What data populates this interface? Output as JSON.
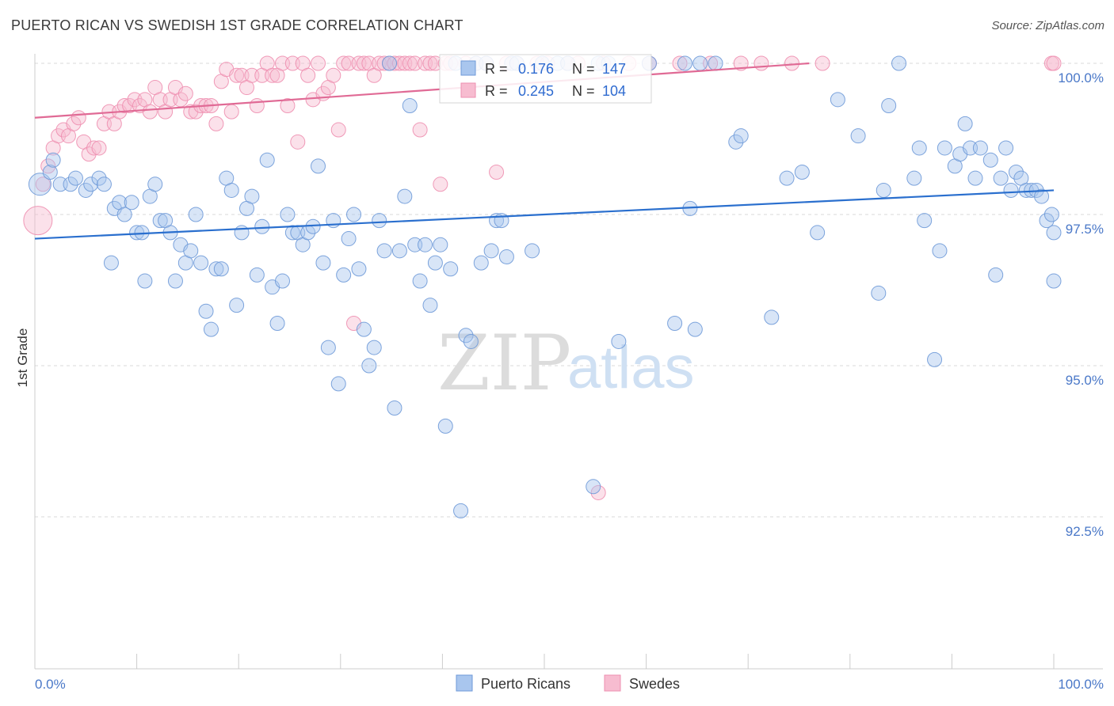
{
  "title": "PUERTO RICAN VS SWEDISH 1ST GRADE CORRELATION CHART",
  "source": "Source: ZipAtlas.com",
  "watermark": {
    "zip": "ZIP",
    "atlas": "atlas"
  },
  "colors": {
    "blue_fill": "#a9c6ee",
    "blue_stroke": "#6f9ad8",
    "blue_line": "#2a6fce",
    "pink_fill": "#f7bcd0",
    "pink_stroke": "#ee8fb0",
    "pink_line": "#e06a95",
    "axis_label": "#4a78c8",
    "grid": "#d8d8d8"
  },
  "chart_data": {
    "type": "scatter",
    "ylabel": "1st Grade",
    "xlim": [
      0,
      100
    ],
    "ylim": [
      90.0,
      100.4
    ],
    "x_tick_labels": [
      "0.0%",
      "100.0%"
    ],
    "y_ticks": [
      92.5,
      95.0,
      97.5,
      100.0
    ],
    "y_tick_labels": [
      "92.5%",
      "95.0%",
      "97.5%",
      "100.0%"
    ],
    "grid": "horizontal dashed",
    "legend": {
      "placement": "top-center",
      "entries": [
        {
          "r_label": "R =",
          "r_value": "0.176",
          "n_label": "N =",
          "n_value": "147"
        },
        {
          "r_label": "R =",
          "r_value": "0.245",
          "n_label": "N =",
          "n_value": "104"
        }
      ]
    },
    "series": [
      {
        "name": "Puerto Ricans",
        "color": "blue",
        "trend": {
          "x": [
            0,
            100
          ],
          "y": [
            97.1,
            97.9
          ]
        },
        "points": [
          [
            0.5,
            98.0
          ],
          [
            1.5,
            98.2
          ],
          [
            1.8,
            98.4
          ],
          [
            2.5,
            98.0
          ],
          [
            3.5,
            98.0
          ],
          [
            4,
            98.1
          ],
          [
            5,
            97.9
          ],
          [
            5.5,
            98.0
          ],
          [
            6.3,
            98.1
          ],
          [
            6.8,
            98.0
          ],
          [
            7.5,
            96.7
          ],
          [
            7.8,
            97.6
          ],
          [
            8.3,
            97.7
          ],
          [
            8.8,
            97.5
          ],
          [
            9.5,
            97.7
          ],
          [
            10,
            97.2
          ],
          [
            10.5,
            97.2
          ],
          [
            10.8,
            96.4
          ],
          [
            11.3,
            97.8
          ],
          [
            11.8,
            98.0
          ],
          [
            12.3,
            97.4
          ],
          [
            12.8,
            97.4
          ],
          [
            13.3,
            97.2
          ],
          [
            13.8,
            96.4
          ],
          [
            14.3,
            97.0
          ],
          [
            14.8,
            96.7
          ],
          [
            15.3,
            96.9
          ],
          [
            15.8,
            97.5
          ],
          [
            16.3,
            96.7
          ],
          [
            16.8,
            95.9
          ],
          [
            17.3,
            95.6
          ],
          [
            17.8,
            96.6
          ],
          [
            18.3,
            96.6
          ],
          [
            18.8,
            98.1
          ],
          [
            19.3,
            97.9
          ],
          [
            19.8,
            96.0
          ],
          [
            20.3,
            97.2
          ],
          [
            20.8,
            97.6
          ],
          [
            21.3,
            97.8
          ],
          [
            21.8,
            96.5
          ],
          [
            22.3,
            97.3
          ],
          [
            22.8,
            98.4
          ],
          [
            23.3,
            96.3
          ],
          [
            23.8,
            95.7
          ],
          [
            24.3,
            96.4
          ],
          [
            24.8,
            97.5
          ],
          [
            25.3,
            97.2
          ],
          [
            25.8,
            97.2
          ],
          [
            26.3,
            97.0
          ],
          [
            26.8,
            97.2
          ],
          [
            27.3,
            97.3
          ],
          [
            27.8,
            98.3
          ],
          [
            28.3,
            96.7
          ],
          [
            28.8,
            95.3
          ],
          [
            29.3,
            97.4
          ],
          [
            29.8,
            94.7
          ],
          [
            30.3,
            96.5
          ],
          [
            30.8,
            97.1
          ],
          [
            31.3,
            97.5
          ],
          [
            31.8,
            96.6
          ],
          [
            32.3,
            95.6
          ],
          [
            32.8,
            95.0
          ],
          [
            33.3,
            95.3
          ],
          [
            33.8,
            97.4
          ],
          [
            34.3,
            96.9
          ],
          [
            34.8,
            100.0
          ],
          [
            35.3,
            94.3
          ],
          [
            35.8,
            96.9
          ],
          [
            36.3,
            97.8
          ],
          [
            36.8,
            99.3
          ],
          [
            37.3,
            97.0
          ],
          [
            37.8,
            96.4
          ],
          [
            38.3,
            97.0
          ],
          [
            38.8,
            96.0
          ],
          [
            39.3,
            96.7
          ],
          [
            39.8,
            97.0
          ],
          [
            40.3,
            94.0
          ],
          [
            40.8,
            96.6
          ],
          [
            41.3,
            100.0
          ],
          [
            41.8,
            92.6
          ],
          [
            42.3,
            95.5
          ],
          [
            42.8,
            95.4
          ],
          [
            43.3,
            100.0
          ],
          [
            43.8,
            96.7
          ],
          [
            44.3,
            100.0
          ],
          [
            44.8,
            96.9
          ],
          [
            45.3,
            97.4
          ],
          [
            45.8,
            97.4
          ],
          [
            46.3,
            96.8
          ],
          [
            46.8,
            100.0
          ],
          [
            47.3,
            100.0
          ],
          [
            48.8,
            96.9
          ],
          [
            49.8,
            100.0
          ],
          [
            51.3,
            100.0
          ],
          [
            52.3,
            100.0
          ],
          [
            54.8,
            93.0
          ],
          [
            55.3,
            100.0
          ],
          [
            56.3,
            100.0
          ],
          [
            57.3,
            95.4
          ],
          [
            60.3,
            100.0
          ],
          [
            62.8,
            95.7
          ],
          [
            63.8,
            100.0
          ],
          [
            64.3,
            97.6
          ],
          [
            64.8,
            95.6
          ],
          [
            65.3,
            100.0
          ],
          [
            66.8,
            100.0
          ],
          [
            68.8,
            98.7
          ],
          [
            69.3,
            98.8
          ],
          [
            72.3,
            95.8
          ],
          [
            73.8,
            98.1
          ],
          [
            75.3,
            98.2
          ],
          [
            76.8,
            97.2
          ],
          [
            78.8,
            99.4
          ],
          [
            80.8,
            98.8
          ],
          [
            82.8,
            96.2
          ],
          [
            83.3,
            97.9
          ],
          [
            83.8,
            99.3
          ],
          [
            84.8,
            100.0
          ],
          [
            86.3,
            98.1
          ],
          [
            86.8,
            98.6
          ],
          [
            87.3,
            97.4
          ],
          [
            88.3,
            95.1
          ],
          [
            88.8,
            96.9
          ],
          [
            89.3,
            98.6
          ],
          [
            90.3,
            98.3
          ],
          [
            90.8,
            98.5
          ],
          [
            91.3,
            99.0
          ],
          [
            91.8,
            98.6
          ],
          [
            92.3,
            98.1
          ],
          [
            92.8,
            98.6
          ],
          [
            93.8,
            98.4
          ],
          [
            94.3,
            96.5
          ],
          [
            94.8,
            98.1
          ],
          [
            95.3,
            98.6
          ],
          [
            95.8,
            97.9
          ],
          [
            96.3,
            98.2
          ],
          [
            96.8,
            98.1
          ],
          [
            97.3,
            97.9
          ],
          [
            97.8,
            97.9
          ],
          [
            98.3,
            97.9
          ],
          [
            98.8,
            97.8
          ],
          [
            99.3,
            97.4
          ],
          [
            99.8,
            97.5
          ],
          [
            100,
            97.2
          ],
          [
            100,
            96.4
          ]
        ]
      },
      {
        "name": "Swedes",
        "color": "pink",
        "trend": {
          "x": [
            0,
            76
          ],
          "y": [
            99.1,
            100.0
          ]
        },
        "points": [
          [
            0.3,
            97.4
          ],
          [
            0.8,
            98.0
          ],
          [
            1.3,
            98.3
          ],
          [
            1.8,
            98.6
          ],
          [
            2.3,
            98.8
          ],
          [
            2.8,
            98.9
          ],
          [
            3.3,
            98.8
          ],
          [
            3.8,
            99.0
          ],
          [
            4.3,
            99.1
          ],
          [
            4.8,
            98.7
          ],
          [
            5.3,
            98.5
          ],
          [
            5.8,
            98.6
          ],
          [
            6.3,
            98.6
          ],
          [
            6.8,
            99.0
          ],
          [
            7.3,
            99.2
          ],
          [
            7.8,
            99.0
          ],
          [
            8.3,
            99.2
          ],
          [
            8.8,
            99.3
          ],
          [
            9.3,
            99.3
          ],
          [
            9.8,
            99.4
          ],
          [
            10.3,
            99.3
          ],
          [
            10.8,
            99.4
          ],
          [
            11.3,
            99.2
          ],
          [
            11.8,
            99.6
          ],
          [
            12.3,
            99.4
          ],
          [
            12.8,
            99.2
          ],
          [
            13.3,
            99.4
          ],
          [
            13.8,
            99.6
          ],
          [
            14.3,
            99.4
          ],
          [
            14.8,
            99.5
          ],
          [
            15.3,
            99.2
          ],
          [
            15.8,
            99.2
          ],
          [
            16.3,
            99.3
          ],
          [
            16.8,
            99.3
          ],
          [
            17.3,
            99.3
          ],
          [
            17.8,
            99.0
          ],
          [
            18.3,
            99.7
          ],
          [
            18.8,
            99.9
          ],
          [
            19.3,
            99.2
          ],
          [
            19.8,
            99.8
          ],
          [
            20.3,
            99.8
          ],
          [
            20.8,
            99.6
          ],
          [
            21.3,
            99.8
          ],
          [
            21.8,
            99.3
          ],
          [
            22.3,
            99.8
          ],
          [
            22.8,
            100.0
          ],
          [
            23.3,
            99.8
          ],
          [
            23.8,
            99.8
          ],
          [
            24.3,
            100.0
          ],
          [
            24.8,
            99.3
          ],
          [
            25.3,
            100.0
          ],
          [
            25.8,
            98.7
          ],
          [
            26.3,
            100.0
          ],
          [
            26.8,
            99.8
          ],
          [
            27.3,
            99.4
          ],
          [
            27.8,
            100.0
          ],
          [
            28.3,
            99.5
          ],
          [
            28.8,
            99.6
          ],
          [
            29.3,
            99.8
          ],
          [
            29.8,
            98.9
          ],
          [
            30.3,
            100.0
          ],
          [
            30.8,
            100.0
          ],
          [
            31.3,
            95.7
          ],
          [
            31.8,
            100.0
          ],
          [
            32.3,
            100.0
          ],
          [
            32.8,
            100.0
          ],
          [
            33.3,
            99.8
          ],
          [
            33.8,
            100.0
          ],
          [
            34.3,
            100.0
          ],
          [
            34.8,
            100.0
          ],
          [
            35.3,
            100.0
          ],
          [
            35.8,
            100.0
          ],
          [
            36.3,
            100.0
          ],
          [
            36.8,
            100.0
          ],
          [
            37.3,
            100.0
          ],
          [
            37.8,
            98.9
          ],
          [
            38.3,
            100.0
          ],
          [
            38.8,
            100.0
          ],
          [
            39.3,
            100.0
          ],
          [
            39.8,
            98.0
          ],
          [
            40.3,
            100.0
          ],
          [
            40.8,
            100.0
          ],
          [
            42.3,
            100.0
          ],
          [
            43.3,
            100.0
          ],
          [
            44.3,
            100.0
          ],
          [
            45.3,
            98.2
          ],
          [
            46.3,
            100.0
          ],
          [
            47.3,
            100.0
          ],
          [
            49.3,
            100.0
          ],
          [
            50.3,
            100.0
          ],
          [
            52.3,
            100.0
          ],
          [
            53.3,
            100.0
          ],
          [
            55.3,
            92.9
          ],
          [
            55.8,
            100.0
          ],
          [
            58.3,
            100.0
          ],
          [
            60.3,
            100.0
          ],
          [
            63.3,
            100.0
          ],
          [
            66.3,
            100.0
          ],
          [
            69.3,
            100.0
          ],
          [
            71.3,
            100.0
          ],
          [
            74.3,
            100.0
          ],
          [
            77.3,
            100.0
          ],
          [
            99.8,
            100.0
          ],
          [
            100,
            100.0
          ]
        ]
      }
    ]
  }
}
